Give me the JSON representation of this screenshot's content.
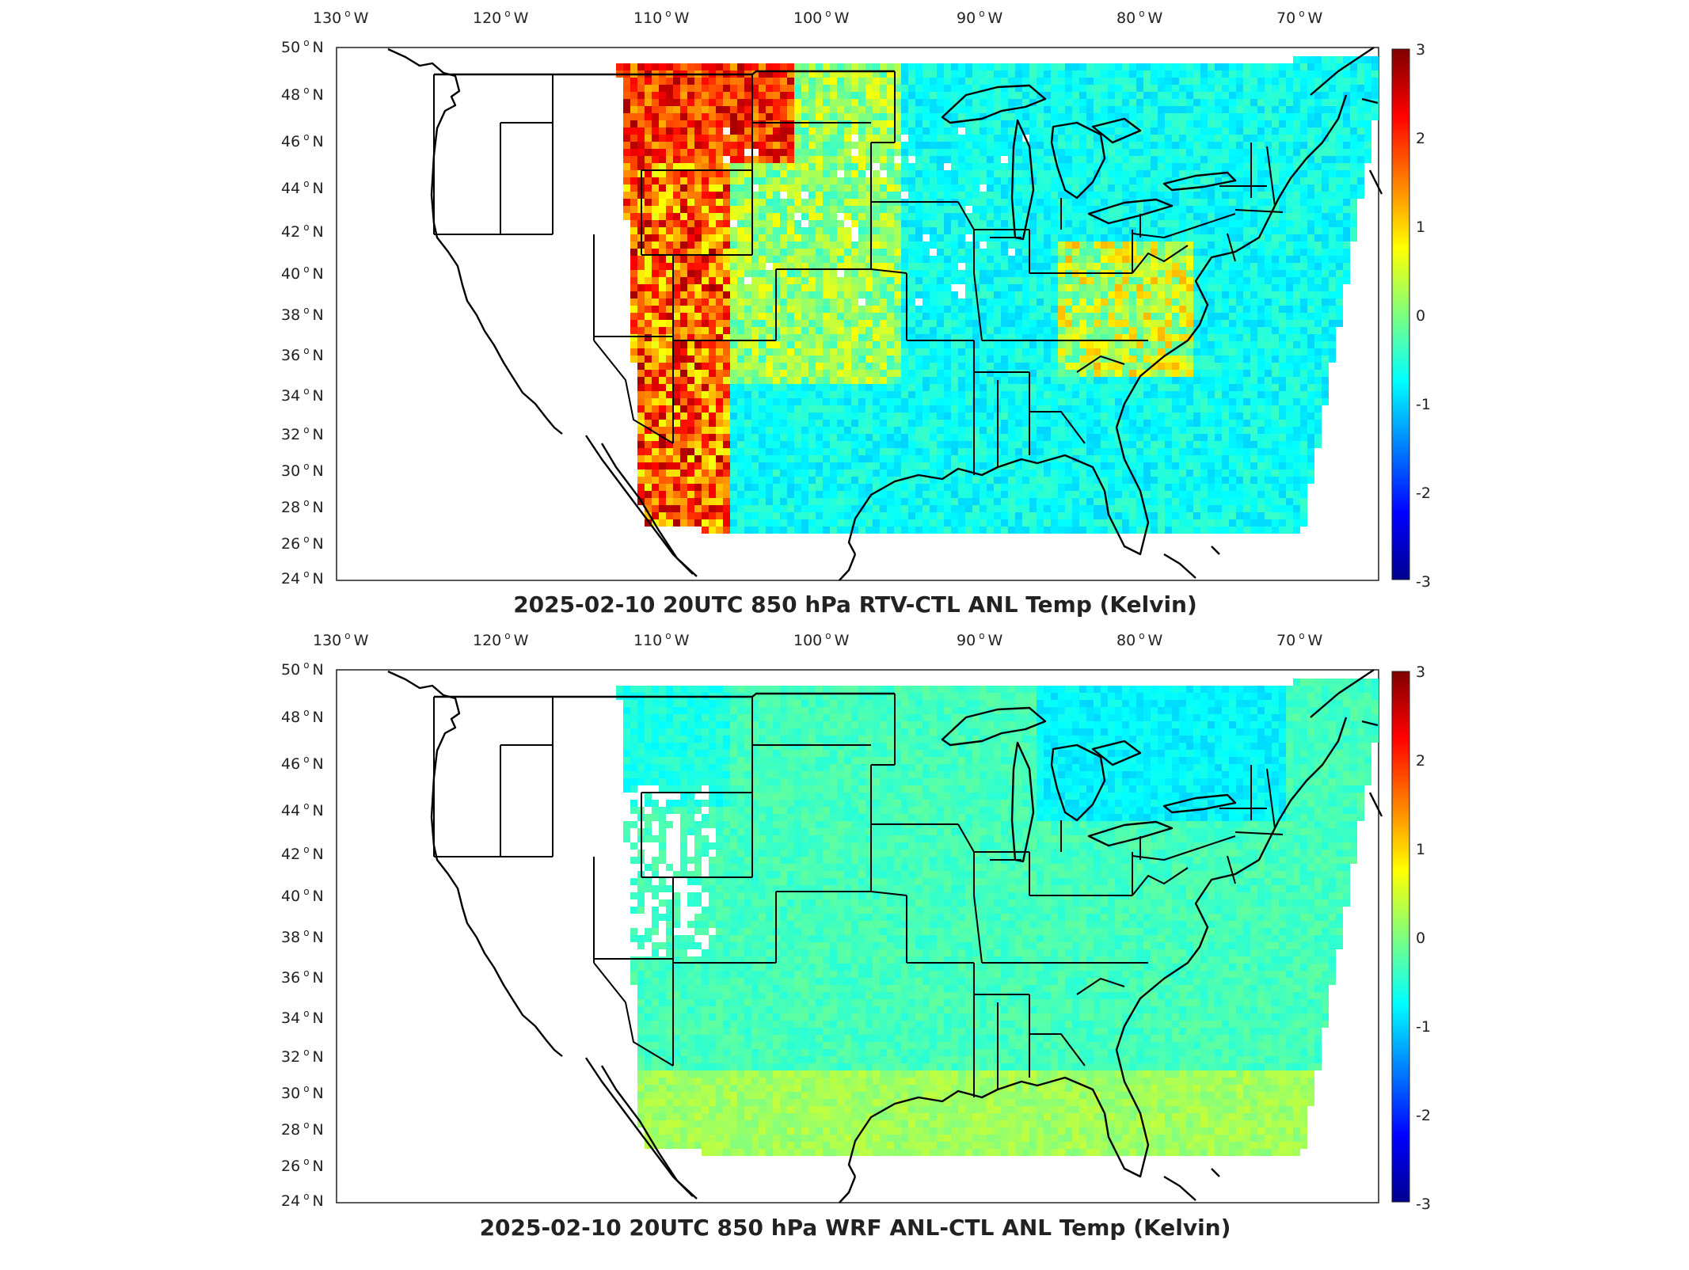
{
  "panels": [
    {
      "id": "rtv",
      "title": "2025-02-10 20UTC 850 hPa RTV-CTL ANL Temp (Kelvin)",
      "lon_labels": [
        "130",
        "120",
        "110",
        "100",
        "90",
        "80",
        "70"
      ],
      "lon_suffix": "W",
      "lat_labels": [
        "50",
        "48",
        "46",
        "44",
        "42",
        "40",
        "38",
        "36",
        "34",
        "32",
        "30",
        "28",
        "26",
        "24"
      ],
      "lat_suffix": "N",
      "colorbar_ticks": [
        "3",
        "2",
        "1",
        "0",
        "-1",
        "-2",
        "-3"
      ],
      "pattern": "mixed"
    },
    {
      "id": "wrf",
      "title": "2025-02-10 20UTC 850 hPa WRF ANL-CTL ANL Temp (Kelvin)",
      "lon_labels": [
        "130",
        "120",
        "110",
        "100",
        "90",
        "80",
        "70"
      ],
      "lon_suffix": "W",
      "lat_labels": [
        "50",
        "48",
        "46",
        "44",
        "42",
        "40",
        "38",
        "36",
        "34",
        "32",
        "30",
        "28",
        "26",
        "24"
      ],
      "lat_suffix": "N",
      "colorbar_ticks": [
        "3",
        "2",
        "1",
        "0",
        "-1",
        "-2",
        "-3"
      ],
      "pattern": "smooth"
    }
  ],
  "map_extent": {
    "lon_min": -132,
    "lon_max": -66,
    "lat_min": 24,
    "lat_max": 50
  },
  "color_scale": {
    "min": -3,
    "max": 3,
    "colormap": "jet",
    "low_color": "#00008f",
    "high_color": "#800000"
  }
}
